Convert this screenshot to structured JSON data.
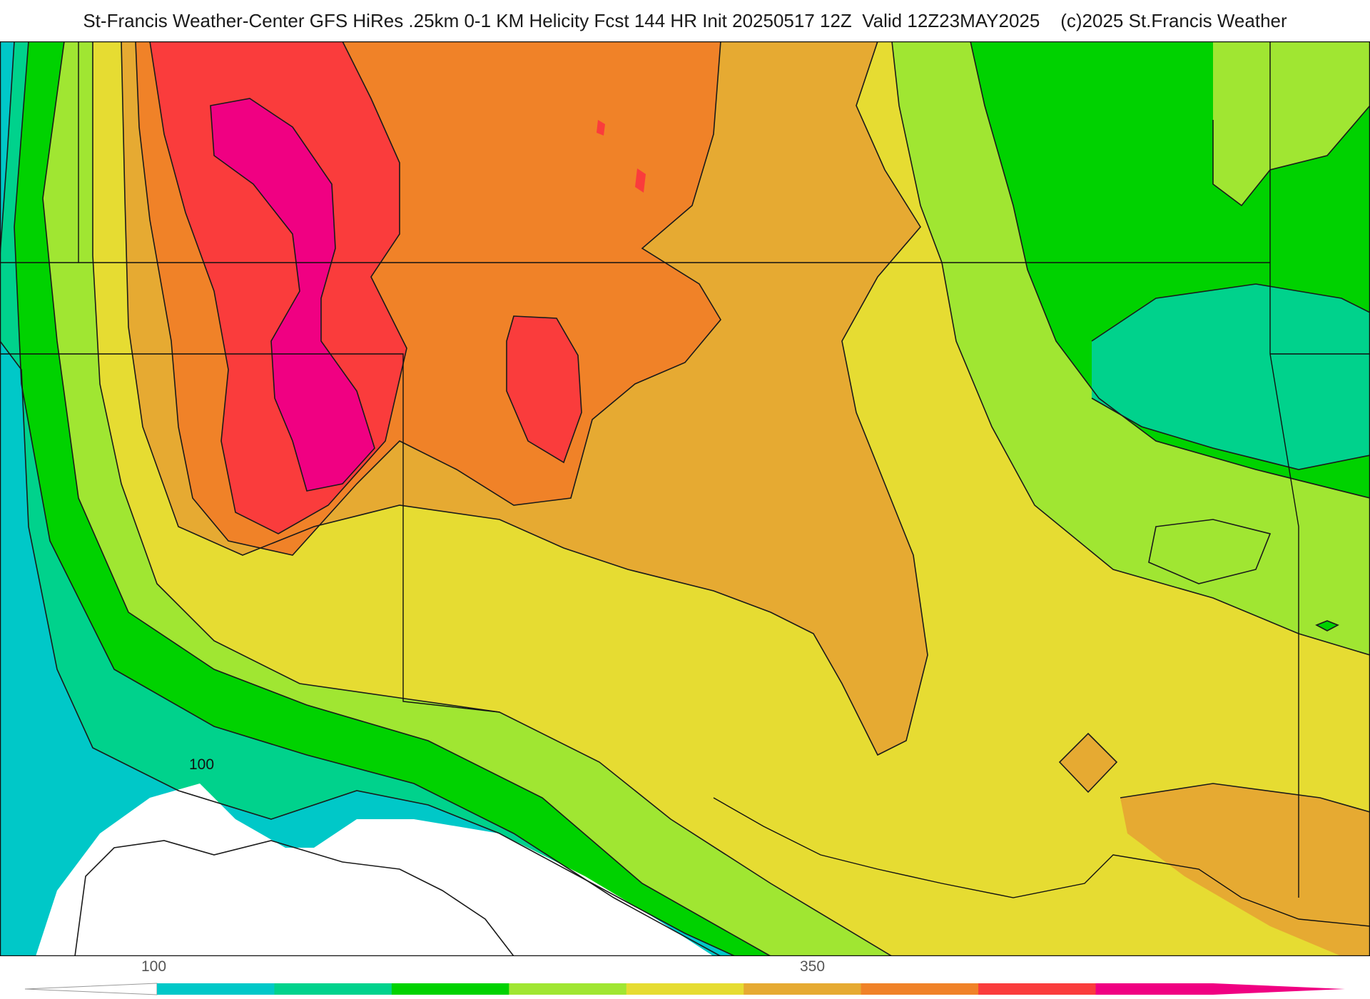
{
  "title": "St-Francis Weather-Center GFS HiRes .25km 0-1 KM Helicity Fcst 144 HR Init 20250517 12Z  Valid 12Z23MAY2025    (c)2025 St.Francis Weather",
  "map": {
    "contour_label": "100",
    "palette": [
      "#ffffff",
      "#00c8c8",
      "#00d28c",
      "#00d200",
      "#a0e632",
      "#e6dc32",
      "#e6aa32",
      "#f08228",
      "#fa3c3c",
      "#f00082"
    ]
  },
  "colorbar": {
    "tick_labels": [
      "100",
      "350"
    ],
    "colors": [
      "#00c8c8",
      "#00d28c",
      "#00d200",
      "#a0e632",
      "#e6dc32",
      "#e6aa32",
      "#f08228",
      "#fa3c3c",
      "#f00082"
    ]
  }
}
